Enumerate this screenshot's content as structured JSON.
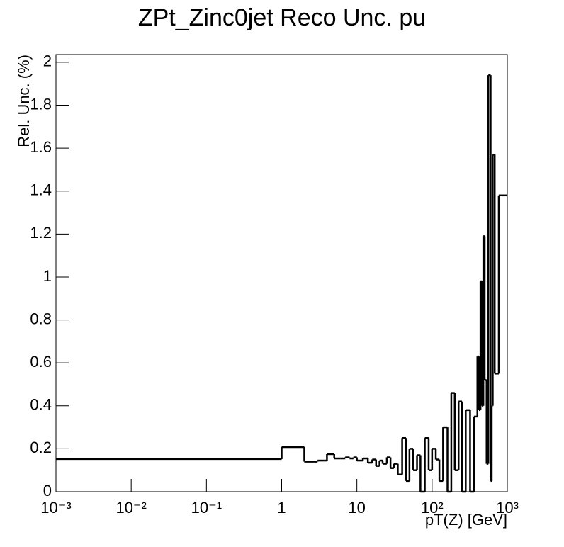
{
  "chart_data": {
    "type": "histogram",
    "title": "ZPt_Zinc0jet Reco Unc. pu",
    "x_label": "pT(Z) [GeV]",
    "y_label": "Rel. Unc. (%)",
    "log_x": true,
    "color": "#000000",
    "xlim": [
      0.001,
      1000
    ],
    "ylim": [
      0,
      2.036
    ],
    "xticks": [
      {
        "value": 0.001,
        "label": "10⁻³"
      },
      {
        "value": 0.01,
        "label": "10⁻²"
      },
      {
        "value": 0.1,
        "label": "10⁻¹"
      },
      1,
      10,
      {
        "value": 100,
        "label": "10²"
      },
      {
        "value": 1000,
        "label": "10³"
      }
    ],
    "yticks": [
      0,
      0.2,
      0.4,
      0.6,
      0.8,
      1,
      1.2,
      1.4,
      1.6,
      1.8,
      2
    ],
    "bins": [
      0.001,
      1,
      2,
      3,
      4,
      5,
      6,
      7,
      8,
      9,
      10,
      12,
      14,
      16,
      18,
      20,
      22,
      25,
      28,
      31,
      35,
      40,
      45,
      50,
      56,
      63,
      70,
      80,
      90,
      100,
      112,
      125,
      140,
      160,
      180,
      200,
      225,
      250,
      280,
      320,
      360,
      400,
      420,
      440,
      460,
      480,
      500,
      530,
      560,
      600,
      620,
      640,
      680,
      770,
      1000
    ],
    "values": [
      0.152,
      0.208,
      0.14,
      0.145,
      0.175,
      0.155,
      0.155,
      0.16,
      0.155,
      0.16,
      0.145,
      0.155,
      0.135,
      0.15,
      0.12,
      0.145,
      0.13,
      0.16,
      0.11,
      0.13,
      0.08,
      0.25,
      0.05,
      0.2,
      0.1,
      0.17,
      0.0,
      0.25,
      0.1,
      0.2,
      0.15,
      0.05,
      0.3,
      0.0,
      0.46,
      0.1,
      0.42,
      0.0,
      0.38,
      0.0,
      0.35,
      0.63,
      0.38,
      0.98,
      0.4,
      1.19,
      0.52,
      0.13,
      1.94,
      0.05,
      0.4,
      1.57,
      0.55,
      1.38
    ]
  }
}
